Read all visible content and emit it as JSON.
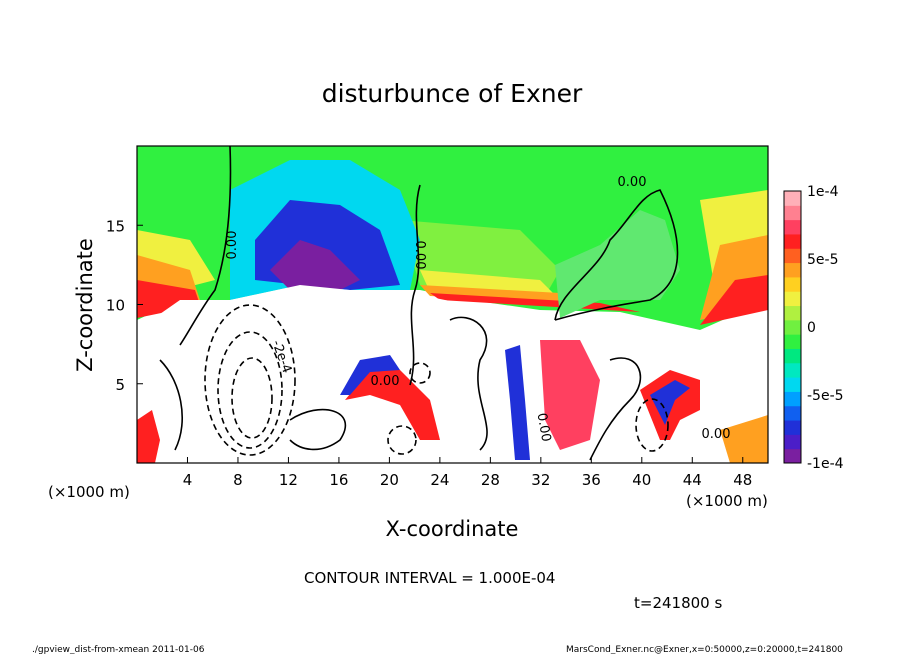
{
  "chart_data": {
    "type": "heatmap",
    "title": "disturbunce of Exner",
    "xlabel": "X-coordinate",
    "ylabel": "Z-coordinate",
    "x_unit_left": "(×1000 m)",
    "x_unit_right": "(×1000 m)",
    "xlim": [
      0,
      50
    ],
    "ylim": [
      0,
      20
    ],
    "x_ticks": [
      "4",
      "8",
      "12",
      "16",
      "20",
      "24",
      "28",
      "32",
      "36",
      "40",
      "44",
      "48"
    ],
    "y_ticks": [
      "5",
      "10",
      "15"
    ],
    "colorbar": {
      "labels": [
        "1e-4",
        "5e-5",
        "0",
        "-5e-5",
        "-1e-4"
      ],
      "range": [
        -0.0001,
        0.0001
      ],
      "colors": [
        "#7a1fa0",
        "#4b1ec8",
        "#2030d8",
        "#1060f0",
        "#00a0ff",
        "#00d8f0",
        "#00e8c0",
        "#00e880",
        "#30f040",
        "#70f040",
        "#b0f040",
        "#f0f040",
        "#ffd020",
        "#ffa020",
        "#ff6020",
        "#ff2020",
        "#ff4060",
        "#ff8090",
        "#ffb0b8"
      ]
    },
    "contour_labels": [
      "0.00",
      "0.00",
      "0.00",
      "-2e-4",
      "0.00",
      "0.00",
      "0.00",
      "0.00"
    ],
    "contour_interval_text": "CONTOUR INTERVAL = 1.000E-04",
    "time_text": "t=241800 s"
  },
  "footer": {
    "left": "./gpview_dist-from-xmean  2011-01-06",
    "right": "MarsCond_Exner.nc@Exner,x=0:50000,z=0:20000,t=241800"
  }
}
